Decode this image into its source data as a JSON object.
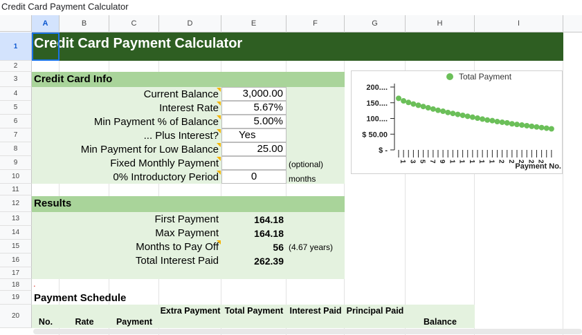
{
  "window": {
    "title": "Credit Card Payment Calculator"
  },
  "columns": [
    "A",
    "B",
    "C",
    "D",
    "E",
    "F",
    "G",
    "H",
    "I"
  ],
  "rows": [
    "1",
    "2",
    "3",
    "4",
    "5",
    "6",
    "7",
    "8",
    "9",
    "10",
    "11",
    "12",
    "13",
    "14",
    "15",
    "16",
    "17",
    "18",
    "19",
    "20"
  ],
  "sheet": {
    "title": "Credit Card Payment Calculator",
    "info_header": "Credit Card Info",
    "inputs": [
      {
        "label": "Current Balance",
        "value": "3,000.00",
        "note": ""
      },
      {
        "label": "Interest Rate",
        "value": "5.67%",
        "note": ""
      },
      {
        "label": "Min Payment % of Balance",
        "value": "5.00%",
        "note": ""
      },
      {
        "label": "... Plus Interest?",
        "value": "Yes",
        "note": ""
      },
      {
        "label": "Min Payment for Low Balance",
        "value": "25.00",
        "note": ""
      },
      {
        "label": "Fixed Monthly Payment",
        "value": "",
        "note": "(optional)"
      },
      {
        "label": "0% Introductory Period",
        "value": "0",
        "note": "months"
      }
    ],
    "results_header": "Results",
    "results": [
      {
        "label": "First Payment",
        "value": "164.18",
        "extra": ""
      },
      {
        "label": "Max Payment",
        "value": "164.18",
        "extra": ""
      },
      {
        "label": "Months to Pay Off",
        "value": "56",
        "extra": "(4.67 years)"
      },
      {
        "label": "Total Interest Paid",
        "value": "262.39",
        "extra": ""
      }
    ],
    "schedule_header": "Payment Schedule",
    "schedule_columns": {
      "no": "No.",
      "rate": "Rate",
      "payment": "Payment",
      "extra_payment": "Extra Payment",
      "total_payment": "Total Payment",
      "interest_paid": "Interest Paid",
      "principal_paid": "Principal Paid",
      "balance": "Balance"
    },
    "row18_marker": "."
  },
  "chart_data": {
    "type": "scatter",
    "title": "",
    "legend": [
      "Total Payment"
    ],
    "legend_position": "top-right",
    "xlabel": "Payment No.",
    "ylabel": "",
    "ytick_labels": [
      "$ -",
      "$ 50.00",
      "100....",
      "150....",
      "200...."
    ],
    "ylim": [
      0,
      200
    ],
    "xtick_labels": [
      "1",
      "3",
      "5",
      "7",
      "9",
      "1",
      "1",
      "1",
      "1",
      "1",
      "2",
      "2",
      "2",
      "2",
      "2"
    ],
    "color": "#6bbf59",
    "series": [
      {
        "name": "Total Payment",
        "x": [
          1,
          2,
          3,
          4,
          5,
          6,
          7,
          8,
          9,
          10,
          11,
          12,
          13,
          14,
          15,
          16,
          17,
          18,
          19,
          20,
          21,
          22,
          23,
          24,
          25,
          26,
          27,
          28,
          29,
          30,
          31,
          32
        ],
        "values": [
          164,
          156,
          151,
          146,
          142,
          138,
          134,
          130,
          126,
          123,
          119,
          116,
          113,
          110,
          107,
          104,
          101,
          98,
          95,
          93,
          90,
          88,
          86,
          83,
          81,
          79,
          77,
          75,
          73,
          71,
          69,
          67
        ]
      }
    ]
  }
}
